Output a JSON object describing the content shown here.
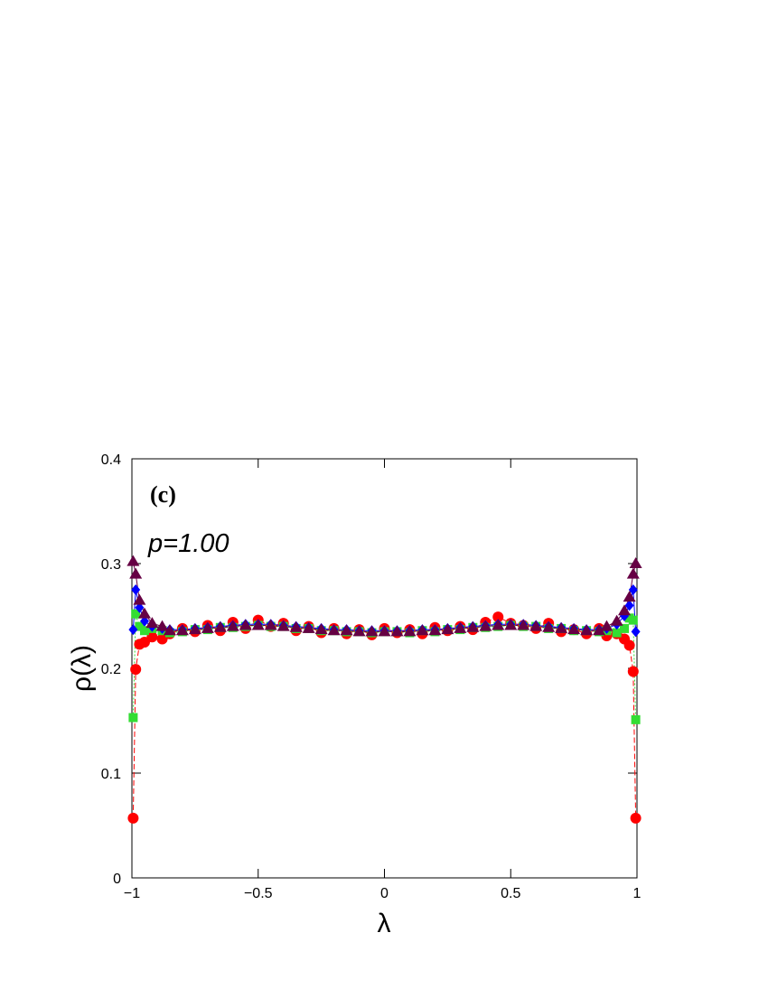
{
  "chart_data": {
    "type": "line",
    "annotations": [
      "(c)",
      "p=1.00"
    ],
    "x_label": "λ",
    "y_label": "ρ(λ)",
    "x": [
      -0.995,
      -0.985,
      -0.97,
      -0.95,
      -0.92,
      -0.88,
      -0.85,
      -0.8,
      -0.75,
      -0.7,
      -0.65,
      -0.6,
      -0.55,
      -0.5,
      -0.45,
      -0.4,
      -0.35,
      -0.3,
      -0.25,
      -0.2,
      -0.15,
      -0.1,
      -0.05,
      0,
      0.05,
      0.1,
      0.15,
      0.2,
      0.25,
      0.3,
      0.35,
      0.4,
      0.45,
      0.5,
      0.55,
      0.6,
      0.65,
      0.7,
      0.75,
      0.8,
      0.85,
      0.88,
      0.92,
      0.95,
      0.97,
      0.985,
      0.995
    ],
    "series": [
      {
        "color": "#ff0000",
        "marker": "circle",
        "line": "dashed",
        "values": [
          0.057,
          0.199,
          0.223,
          0.225,
          0.23,
          0.228,
          0.233,
          0.238,
          0.235,
          0.241,
          0.236,
          0.244,
          0.238,
          0.246,
          0.24,
          0.243,
          0.236,
          0.24,
          0.234,
          0.238,
          0.233,
          0.237,
          0.232,
          0.238,
          0.234,
          0.237,
          0.233,
          0.239,
          0.236,
          0.24,
          0.237,
          0.244,
          0.249,
          0.243,
          0.241,
          0.238,
          0.243,
          0.235,
          0.237,
          0.233,
          0.238,
          0.231,
          0.233,
          0.228,
          0.222,
          0.197,
          0.057
        ]
      },
      {
        "color": "#33dd33",
        "marker": "square",
        "line": "dotted",
        "values": [
          0.153,
          0.252,
          0.24,
          0.236,
          0.238,
          0.236,
          0.234,
          0.235,
          0.237,
          0.237,
          0.239,
          0.239,
          0.24,
          0.241,
          0.24,
          0.24,
          0.238,
          0.238,
          0.236,
          0.236,
          0.235,
          0.235,
          0.234,
          0.235,
          0.235,
          0.234,
          0.236,
          0.235,
          0.237,
          0.237,
          0.239,
          0.239,
          0.24,
          0.241,
          0.24,
          0.24,
          0.238,
          0.238,
          0.236,
          0.236,
          0.235,
          0.236,
          0.234,
          0.238,
          0.248,
          0.246,
          0.151
        ]
      },
      {
        "color": "#0000ff",
        "marker": "diamond",
        "line": "solid",
        "values": [
          0.237,
          0.275,
          0.258,
          0.245,
          0.24,
          0.238,
          0.237,
          0.237,
          0.238,
          0.239,
          0.24,
          0.241,
          0.242,
          0.242,
          0.242,
          0.241,
          0.24,
          0.239,
          0.238,
          0.237,
          0.237,
          0.236,
          0.236,
          0.236,
          0.236,
          0.236,
          0.237,
          0.237,
          0.238,
          0.239,
          0.24,
          0.241,
          0.242,
          0.242,
          0.242,
          0.241,
          0.24,
          0.239,
          0.238,
          0.237,
          0.237,
          0.238,
          0.242,
          0.25,
          0.26,
          0.275,
          0.235
        ]
      },
      {
        "color": "#660044",
        "marker": "triangle",
        "line": "solid",
        "values": [
          0.302,
          0.29,
          0.265,
          0.252,
          0.243,
          0.24,
          0.236,
          0.236,
          0.237,
          0.238,
          0.239,
          0.24,
          0.241,
          0.241,
          0.241,
          0.24,
          0.239,
          0.238,
          0.237,
          0.236,
          0.236,
          0.235,
          0.235,
          0.235,
          0.235,
          0.235,
          0.236,
          0.236,
          0.237,
          0.238,
          0.239,
          0.24,
          0.241,
          0.241,
          0.241,
          0.24,
          0.239,
          0.238,
          0.237,
          0.236,
          0.236,
          0.24,
          0.245,
          0.255,
          0.268,
          0.29,
          0.3
        ]
      }
    ],
    "xlim": [
      -1,
      1
    ],
    "xticks": [
      {
        "value": -1,
        "label": "−1"
      },
      {
        "value": -0.5,
        "label": "−0.5"
      },
      0,
      0.5,
      1
    ],
    "ylim": [
      0,
      0.4
    ],
    "yticks": [
      0,
      0.1,
      0.2,
      0.3,
      0.4
    ]
  }
}
